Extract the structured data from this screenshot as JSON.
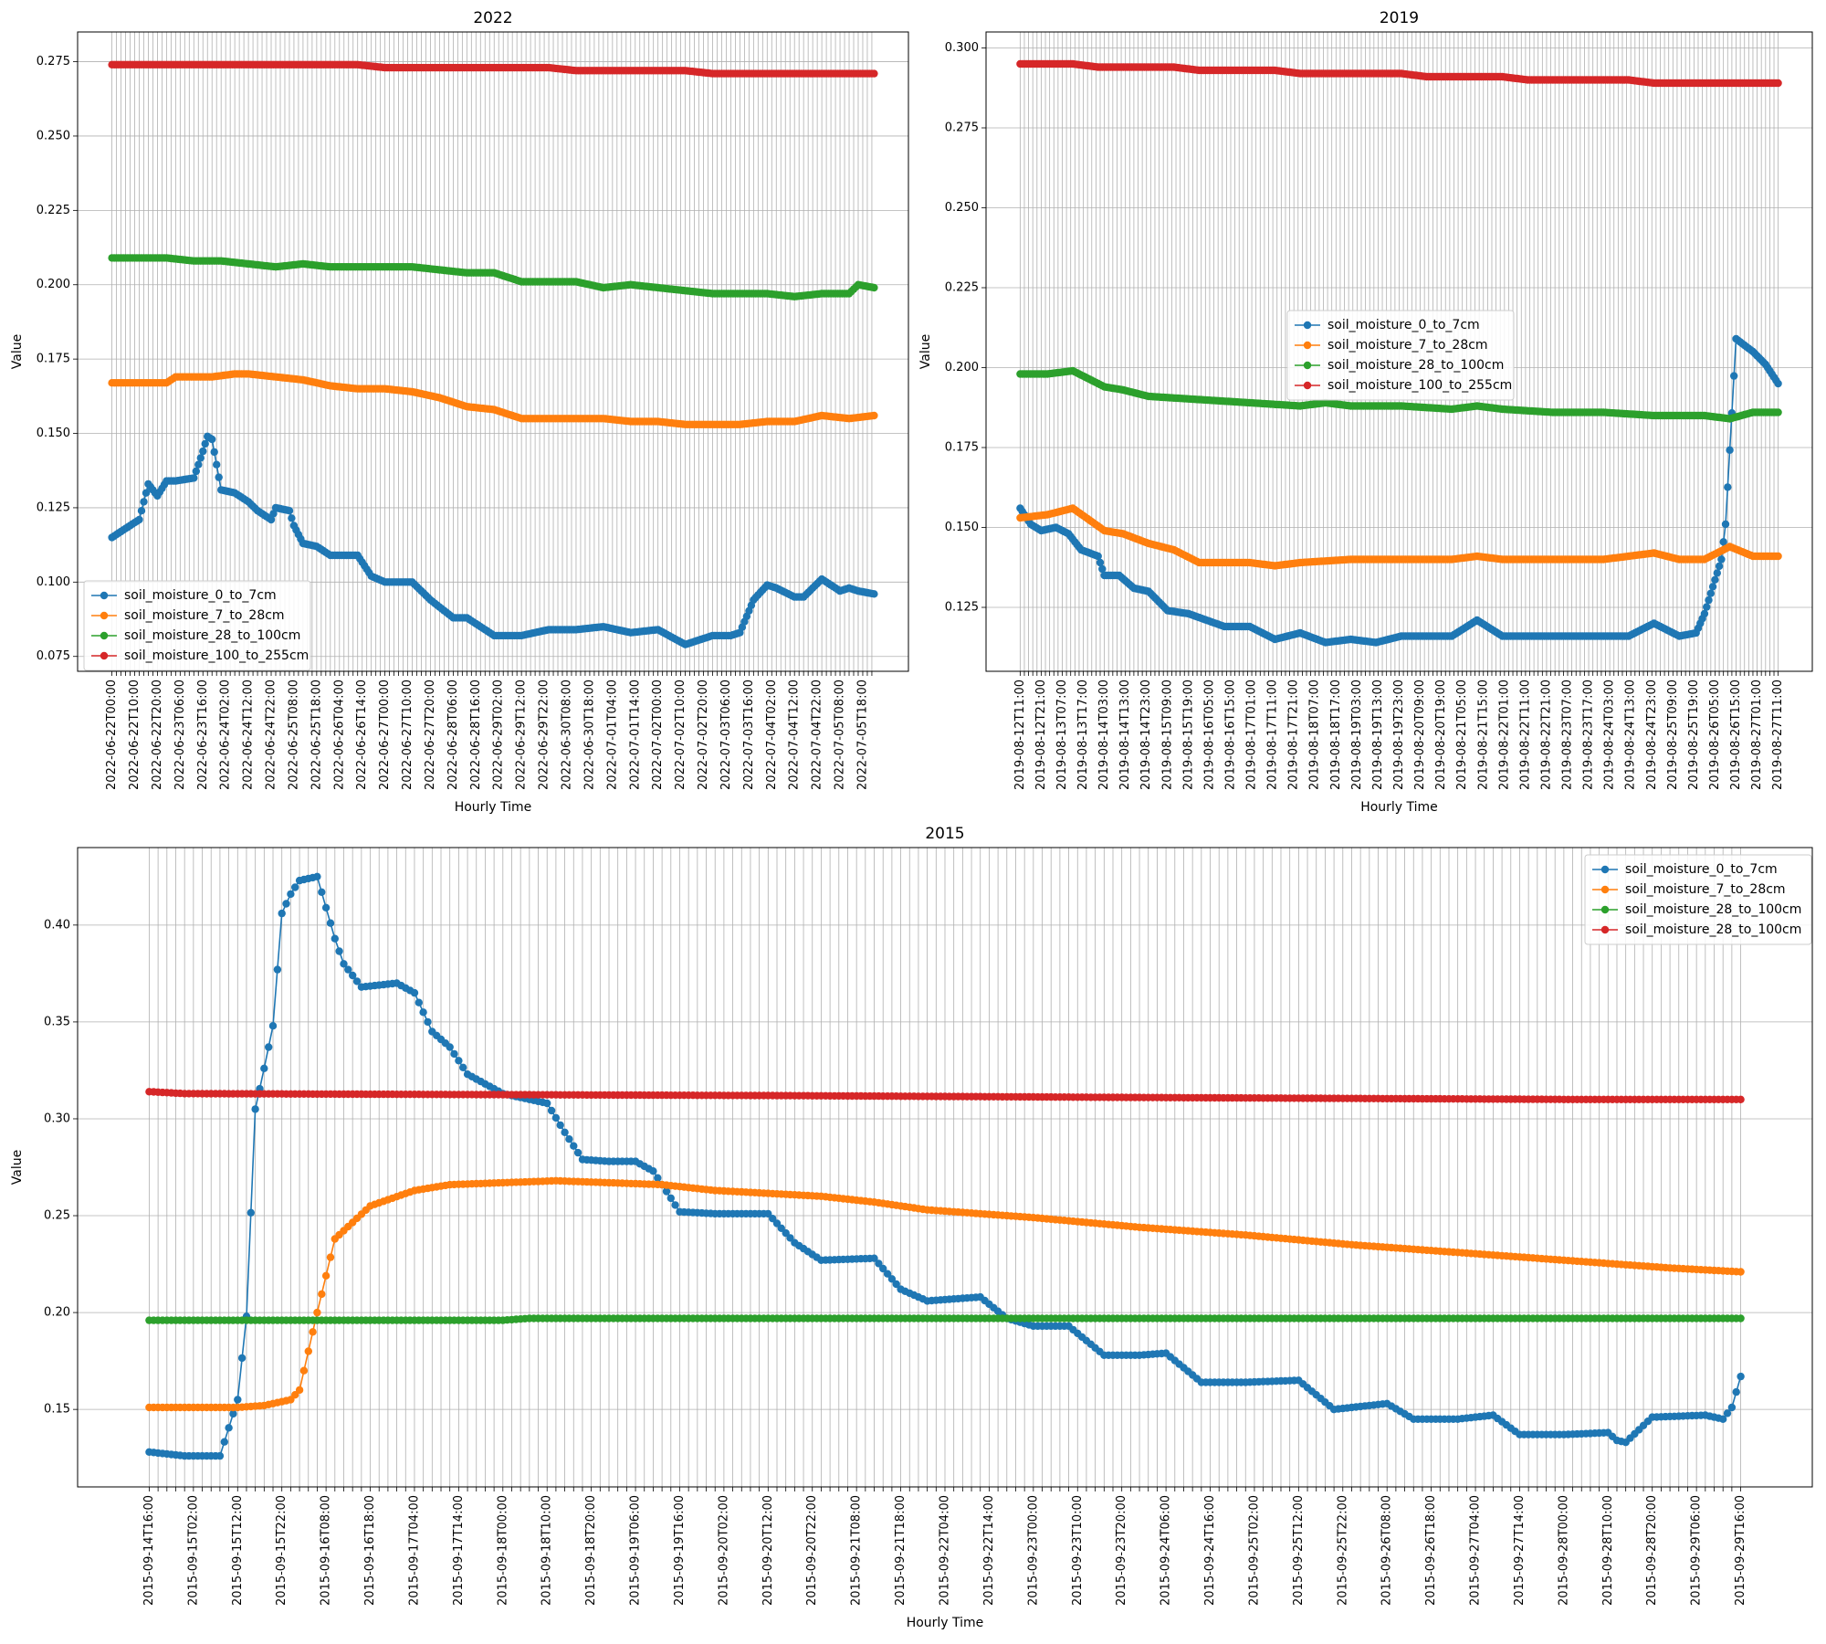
{
  "colors": {
    "blue": "#1f77b4",
    "orange": "#ff7f0e",
    "green": "#2ca02c",
    "red": "#d62728",
    "grid": "#b0b0b0"
  },
  "chart_data": [
    {
      "type": "line",
      "title": "2022",
      "xlabel": "Hourly Time",
      "ylabel": "Value",
      "ylim": [
        0.07,
        0.285
      ],
      "yticks": [
        0.075,
        0.1,
        0.125,
        0.15,
        0.175,
        0.2,
        0.225,
        0.25,
        0.275
      ],
      "ytick_labels": [
        "0.075",
        "0.100",
        "0.125",
        "0.150",
        "0.175",
        "0.200",
        "0.225",
        "0.250",
        "0.275"
      ],
      "x_start": "2022-06-22T00:00",
      "x_end": "2022-07-05T23:00",
      "x_tick_every_hours": 2,
      "x_label_every_hours": 10,
      "grid": true,
      "legend_position": "lower-left",
      "series": [
        {
          "name": "soil_moisture_0_to_7cm",
          "color": "blue",
          "x": [
            "2022-06-22T00:00",
            "2022-06-22T06:00",
            "2022-06-22T12:00",
            "2022-06-22T16:00",
            "2022-06-22T20:00",
            "2022-06-23T00:00",
            "2022-06-23T04:00",
            "2022-06-23T12:00",
            "2022-06-23T16:00",
            "2022-06-23T18:00",
            "2022-06-23T20:00",
            "2022-06-24T00:00",
            "2022-06-24T06:00",
            "2022-06-24T12:00",
            "2022-06-24T16:00",
            "2022-06-24T22:00",
            "2022-06-25T00:00",
            "2022-06-25T06:00",
            "2022-06-25T08:00",
            "2022-06-25T12:00",
            "2022-06-25T18:00",
            "2022-06-26T00:00",
            "2022-06-26T12:00",
            "2022-06-26T18:00",
            "2022-06-27T00:00",
            "2022-06-27T12:00",
            "2022-06-27T20:00",
            "2022-06-28T06:00",
            "2022-06-28T12:00",
            "2022-06-29T00:00",
            "2022-06-29T12:00",
            "2022-06-30T00:00",
            "2022-06-30T12:00",
            "2022-07-01T00:00",
            "2022-07-01T12:00",
            "2022-07-02T00:00",
            "2022-07-02T12:00",
            "2022-07-03T00:00",
            "2022-07-03T08:00",
            "2022-07-03T12:00",
            "2022-07-03T18:00",
            "2022-07-04T00:00",
            "2022-07-04T04:00",
            "2022-07-04T12:00",
            "2022-07-04T16:00",
            "2022-07-05T00:00",
            "2022-07-05T08:00",
            "2022-07-05T12:00",
            "2022-07-05T16:00",
            "2022-07-05T23:00"
          ],
          "y": [
            0.115,
            0.118,
            0.121,
            0.133,
            0.129,
            0.134,
            0.134,
            0.135,
            0.144,
            0.149,
            0.148,
            0.131,
            0.13,
            0.127,
            0.124,
            0.121,
            0.125,
            0.124,
            0.119,
            0.113,
            0.112,
            0.109,
            0.109,
            0.102,
            0.1,
            0.1,
            0.094,
            0.088,
            0.088,
            0.082,
            0.082,
            0.084,
            0.084,
            0.085,
            0.083,
            0.084,
            0.079,
            0.082,
            0.082,
            0.083,
            0.094,
            0.099,
            0.098,
            0.095,
            0.095,
            0.101,
            0.097,
            0.098,
            0.097,
            0.096
          ]
        },
        {
          "name": "soil_moisture_7_to_28cm",
          "color": "orange",
          "x": [
            "2022-06-22T00:00",
            "2022-06-23T00:00",
            "2022-06-23T04:00",
            "2022-06-23T20:00",
            "2022-06-24T06:00",
            "2022-06-24T12:00",
            "2022-06-25T00:00",
            "2022-06-25T12:00",
            "2022-06-26T00:00",
            "2022-06-26T12:00",
            "2022-06-27T00:00",
            "2022-06-27T12:00",
            "2022-06-28T00:00",
            "2022-06-28T12:00",
            "2022-06-29T00:00",
            "2022-06-29T12:00",
            "2022-06-30T00:00",
            "2022-06-30T12:00",
            "2022-07-01T00:00",
            "2022-07-01T12:00",
            "2022-07-02T00:00",
            "2022-07-02T12:00",
            "2022-07-03T00:00",
            "2022-07-03T12:00",
            "2022-07-04T00:00",
            "2022-07-04T12:00",
            "2022-07-05T00:00",
            "2022-07-05T12:00",
            "2022-07-05T23:00"
          ],
          "y": [
            0.167,
            0.167,
            0.169,
            0.169,
            0.17,
            0.17,
            0.169,
            0.168,
            0.166,
            0.165,
            0.165,
            0.164,
            0.162,
            0.159,
            0.158,
            0.155,
            0.155,
            0.155,
            0.155,
            0.154,
            0.154,
            0.153,
            0.153,
            0.153,
            0.154,
            0.154,
            0.156,
            0.155,
            0.156
          ]
        },
        {
          "name": "soil_moisture_28_to_100cm",
          "color": "green",
          "x": [
            "2022-06-22T00:00",
            "2022-06-23T00:00",
            "2022-06-23T12:00",
            "2022-06-24T00:00",
            "2022-06-24T12:00",
            "2022-06-25T00:00",
            "2022-06-25T12:00",
            "2022-06-26T00:00",
            "2022-06-26T12:00",
            "2022-06-27T00:00",
            "2022-06-27T12:00",
            "2022-06-28T00:00",
            "2022-06-28T12:00",
            "2022-06-29T00:00",
            "2022-06-29T12:00",
            "2022-06-30T00:00",
            "2022-06-30T12:00",
            "2022-07-01T00:00",
            "2022-07-01T12:00",
            "2022-07-02T00:00",
            "2022-07-02T12:00",
            "2022-07-03T00:00",
            "2022-07-03T12:00",
            "2022-07-04T00:00",
            "2022-07-04T12:00",
            "2022-07-05T00:00",
            "2022-07-05T12:00",
            "2022-07-05T16:00",
            "2022-07-05T23:00"
          ],
          "y": [
            0.209,
            0.209,
            0.208,
            0.208,
            0.207,
            0.206,
            0.207,
            0.206,
            0.206,
            0.206,
            0.206,
            0.205,
            0.204,
            0.204,
            0.201,
            0.201,
            0.201,
            0.199,
            0.2,
            0.199,
            0.198,
            0.197,
            0.197,
            0.197,
            0.196,
            0.197,
            0.197,
            0.2,
            0.199
          ]
        },
        {
          "name": "soil_moisture_100_to_255cm",
          "color": "red",
          "x": [
            "2022-06-22T00:00",
            "2022-06-26T12:00",
            "2022-06-27T00:00",
            "2022-06-30T00:00",
            "2022-06-30T12:00",
            "2022-07-02T12:00",
            "2022-07-03T00:00",
            "2022-07-05T23:00"
          ],
          "y": [
            0.274,
            0.274,
            0.273,
            0.273,
            0.272,
            0.272,
            0.271,
            0.271
          ]
        }
      ]
    },
    {
      "type": "line",
      "title": "2019",
      "xlabel": "Hourly Time",
      "ylabel": "Value",
      "ylim": [
        0.105,
        0.305
      ],
      "yticks": [
        0.125,
        0.15,
        0.175,
        0.2,
        0.225,
        0.25,
        0.275,
        0.3
      ],
      "ytick_labels": [
        "0.125",
        "0.150",
        "0.175",
        "0.200",
        "0.225",
        "0.250",
        "0.275",
        "0.300"
      ],
      "x_start": "2019-08-12T11:00",
      "x_end": "2019-08-27T11:00",
      "x_tick_every_hours": 2,
      "x_label_every_hours": 10,
      "grid": true,
      "legend_position": "center",
      "series": [
        {
          "name": "soil_moisture_0_to_7cm",
          "color": "blue",
          "x": [
            "2019-08-12T11:00",
            "2019-08-12T16:00",
            "2019-08-12T21:00",
            "2019-08-13T04:00",
            "2019-08-13T10:00",
            "2019-08-13T16:00",
            "2019-08-14T00:00",
            "2019-08-14T03:00",
            "2019-08-14T10:00",
            "2019-08-14T17:00",
            "2019-08-15T00:00",
            "2019-08-15T09:00",
            "2019-08-15T19:00",
            "2019-08-16T12:00",
            "2019-08-17T00:00",
            "2019-08-17T12:00",
            "2019-08-18T00:00",
            "2019-08-18T12:00",
            "2019-08-19T00:00",
            "2019-08-19T12:00",
            "2019-08-20T00:00",
            "2019-08-21T00:00",
            "2019-08-21T12:00",
            "2019-08-22T00:00",
            "2019-08-23T00:00",
            "2019-08-24T00:00",
            "2019-08-24T12:00",
            "2019-08-25T00:00",
            "2019-08-25T12:00",
            "2019-08-25T20:00",
            "2019-08-26T00:00",
            "2019-08-26T08:00",
            "2019-08-26T10:00",
            "2019-08-26T15:00",
            "2019-08-26T23:00",
            "2019-08-27T05:00",
            "2019-08-27T11:00"
          ],
          "y": [
            0.156,
            0.151,
            0.149,
            0.15,
            0.148,
            0.143,
            0.141,
            0.135,
            0.135,
            0.131,
            0.13,
            0.124,
            0.123,
            0.119,
            0.119,
            0.115,
            0.117,
            0.114,
            0.115,
            0.114,
            0.116,
            0.116,
            0.121,
            0.116,
            0.116,
            0.116,
            0.116,
            0.12,
            0.116,
            0.117,
            0.123,
            0.14,
            0.151,
            0.209,
            0.205,
            0.201,
            0.195
          ]
        },
        {
          "name": "soil_moisture_7_to_28cm",
          "color": "orange",
          "x": [
            "2019-08-12T11:00",
            "2019-08-13T00:00",
            "2019-08-13T12:00",
            "2019-08-14T03:00",
            "2019-08-14T12:00",
            "2019-08-15T00:00",
            "2019-08-15T12:00",
            "2019-08-16T00:00",
            "2019-08-17T00:00",
            "2019-08-17T12:00",
            "2019-08-18T00:00",
            "2019-08-19T00:00",
            "2019-08-20T00:00",
            "2019-08-21T00:00",
            "2019-08-21T12:00",
            "2019-08-22T00:00",
            "2019-08-24T00:00",
            "2019-08-24T12:00",
            "2019-08-25T00:00",
            "2019-08-25T12:00",
            "2019-08-26T00:00",
            "2019-08-26T12:00",
            "2019-08-26T23:00",
            "2019-08-27T11:00"
          ],
          "y": [
            0.153,
            0.154,
            0.156,
            0.149,
            0.148,
            0.145,
            0.143,
            0.139,
            0.139,
            0.138,
            0.139,
            0.14,
            0.14,
            0.14,
            0.141,
            0.14,
            0.14,
            0.141,
            0.142,
            0.14,
            0.14,
            0.144,
            0.141,
            0.141
          ]
        },
        {
          "name": "soil_moisture_28_to_100cm",
          "color": "green",
          "x": [
            "2019-08-12T11:00",
            "2019-08-13T00:00",
            "2019-08-13T12:00",
            "2019-08-14T03:00",
            "2019-08-14T12:00",
            "2019-08-15T00:00",
            "2019-08-16T00:00",
            "2019-08-17T00:00",
            "2019-08-18T00:00",
            "2019-08-18T12:00",
            "2019-08-19T00:00",
            "2019-08-20T00:00",
            "2019-08-21T00:00",
            "2019-08-21T12:00",
            "2019-08-22T00:00",
            "2019-08-23T00:00",
            "2019-08-24T00:00",
            "2019-08-25T00:00",
            "2019-08-26T00:00",
            "2019-08-26T12:00",
            "2019-08-26T23:00",
            "2019-08-27T11:00"
          ],
          "y": [
            0.198,
            0.198,
            0.199,
            0.194,
            0.193,
            0.191,
            0.19,
            0.189,
            0.188,
            0.189,
            0.188,
            0.188,
            0.187,
            0.188,
            0.187,
            0.186,
            0.186,
            0.185,
            0.185,
            0.184,
            0.186,
            0.186
          ]
        },
        {
          "name": "soil_moisture_100_to_255cm",
          "color": "red",
          "x": [
            "2019-08-12T11:00",
            "2019-08-13T12:00",
            "2019-08-14T00:00",
            "2019-08-15T12:00",
            "2019-08-16T00:00",
            "2019-08-17T12:00",
            "2019-08-18T00:00",
            "2019-08-20T00:00",
            "2019-08-20T12:00",
            "2019-08-22T00:00",
            "2019-08-22T12:00",
            "2019-08-24T12:00",
            "2019-08-25T00:00",
            "2019-08-27T11:00"
          ],
          "y": [
            0.295,
            0.295,
            0.294,
            0.294,
            0.293,
            0.293,
            0.292,
            0.292,
            0.291,
            0.291,
            0.29,
            0.29,
            0.289,
            0.289
          ]
        }
      ]
    },
    {
      "type": "line",
      "title": "2015",
      "xlabel": "Hourly Time",
      "ylabel": "Value",
      "ylim": [
        0.11,
        0.44
      ],
      "yticks": [
        0.15,
        0.2,
        0.25,
        0.3,
        0.35,
        0.4
      ],
      "ytick_labels": [
        "0.15",
        "0.20",
        "0.25",
        "0.30",
        "0.35",
        "0.40"
      ],
      "x_start": "2015-09-14T16:00",
      "x_end": "2015-09-29T16:00",
      "x_tick_every_hours": 2,
      "x_label_every_hours": 10,
      "grid": true,
      "legend_position": "upper-right",
      "series": [
        {
          "name": "soil_moisture_0_to_7cm",
          "color": "blue",
          "x": [
            "2015-09-14T16:00",
            "2015-09-15T00:00",
            "2015-09-15T04:00",
            "2015-09-15T08:00",
            "2015-09-15T12:00",
            "2015-09-15T14:00",
            "2015-09-15T16:00",
            "2015-09-15T18:00",
            "2015-09-15T20:00",
            "2015-09-15T22:00",
            "2015-09-16T00:00",
            "2015-09-16T02:00",
            "2015-09-16T06:00",
            "2015-09-16T08:00",
            "2015-09-16T10:00",
            "2015-09-16T12:00",
            "2015-09-16T16:00",
            "2015-09-17T00:00",
            "2015-09-17T04:00",
            "2015-09-17T08:00",
            "2015-09-17T12:00",
            "2015-09-17T16:00",
            "2015-09-18T00:00",
            "2015-09-18T06:00",
            "2015-09-18T10:00",
            "2015-09-18T14:00",
            "2015-09-18T18:00",
            "2015-09-19T00:00",
            "2015-09-19T06:00",
            "2015-09-19T10:00",
            "2015-09-19T16:00",
            "2015-09-20T00:00",
            "2015-09-20T12:00",
            "2015-09-20T18:00",
            "2015-09-21T00:00",
            "2015-09-21T12:00",
            "2015-09-21T18:00",
            "2015-09-22T00:00",
            "2015-09-22T12:00",
            "2015-09-22T18:00",
            "2015-09-23T00:00",
            "2015-09-23T08:00",
            "2015-09-23T16:00",
            "2015-09-24T00:00",
            "2015-09-24T06:00",
            "2015-09-24T14:00",
            "2015-09-25T00:00",
            "2015-09-25T12:00",
            "2015-09-25T20:00",
            "2015-09-26T00:00",
            "2015-09-26T08:00",
            "2015-09-26T14:00",
            "2015-09-27T00:00",
            "2015-09-27T08:00",
            "2015-09-27T14:00",
            "2015-09-28T00:00",
            "2015-09-28T10:00",
            "2015-09-28T12:00",
            "2015-09-28T14:00",
            "2015-09-28T20:00",
            "2015-09-29T08:00",
            "2015-09-29T12:00",
            "2015-09-29T14:00",
            "2015-09-29T16:00"
          ],
          "y": [
            0.128,
            0.126,
            0.126,
            0.126,
            0.155,
            0.198,
            0.305,
            0.326,
            0.348,
            0.406,
            0.416,
            0.423,
            0.425,
            0.409,
            0.393,
            0.38,
            0.368,
            0.37,
            0.365,
            0.345,
            0.337,
            0.323,
            0.313,
            0.31,
            0.308,
            0.293,
            0.279,
            0.278,
            0.278,
            0.273,
            0.252,
            0.251,
            0.251,
            0.236,
            0.227,
            0.228,
            0.212,
            0.206,
            0.208,
            0.197,
            0.193,
            0.193,
            0.178,
            0.178,
            0.179,
            0.164,
            0.164,
            0.165,
            0.15,
            0.151,
            0.153,
            0.145,
            0.145,
            0.147,
            0.137,
            0.137,
            0.138,
            0.134,
            0.133,
            0.146,
            0.147,
            0.145,
            0.151,
            0.167
          ]
        },
        {
          "name": "soil_moisture_7_to_28cm",
          "color": "orange",
          "x": [
            "2015-09-14T16:00",
            "2015-09-15T12:00",
            "2015-09-15T18:00",
            "2015-09-16T00:00",
            "2015-09-16T02:00",
            "2015-09-16T06:00",
            "2015-09-16T10:00",
            "2015-09-16T18:00",
            "2015-09-17T04:00",
            "2015-09-17T12:00",
            "2015-09-18T00:00",
            "2015-09-18T12:00",
            "2015-09-19T00:00",
            "2015-09-19T12:00",
            "2015-09-20T00:00",
            "2015-09-21T00:00",
            "2015-09-21T12:00",
            "2015-09-22T00:00",
            "2015-09-23T00:00",
            "2015-09-24T00:00",
            "2015-09-25T00:00",
            "2015-09-26T00:00",
            "2015-09-27T00:00",
            "2015-09-28T00:00",
            "2015-09-29T00:00",
            "2015-09-29T16:00"
          ],
          "y": [
            0.151,
            0.151,
            0.152,
            0.155,
            0.16,
            0.2,
            0.238,
            0.255,
            0.263,
            0.266,
            0.267,
            0.268,
            0.267,
            0.266,
            0.263,
            0.26,
            0.257,
            0.253,
            0.249,
            0.244,
            0.24,
            0.235,
            0.231,
            0.227,
            0.223,
            0.221
          ]
        },
        {
          "name": "soil_moisture_28_to_100cm",
          "color": "green",
          "x": [
            "2015-09-14T16:00",
            "2015-09-18T00:00",
            "2015-09-18T06:00",
            "2015-09-19T00:00",
            "2015-09-29T16:00"
          ],
          "y": [
            0.196,
            0.196,
            0.197,
            0.197,
            0.197
          ]
        },
        {
          "name": "soil_moisture_28_to_100cm",
          "color": "red",
          "x": [
            "2015-09-14T16:00",
            "2015-09-15T00:00",
            "2015-09-20T12:00",
            "2015-09-24T00:00",
            "2015-09-28T00:00",
            "2015-09-29T16:00"
          ],
          "y": [
            0.314,
            0.313,
            0.312,
            0.311,
            0.31,
            0.31
          ]
        }
      ]
    }
  ]
}
